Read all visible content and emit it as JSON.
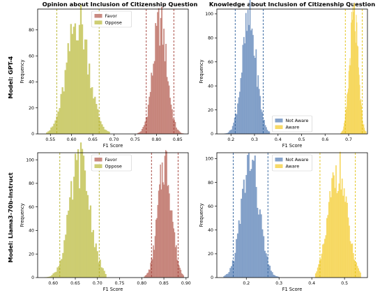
{
  "colors": {
    "favor": "#c0766b",
    "oppose": "#c6c55c",
    "not_aware": "#7193c1",
    "aware": "#f6d34d",
    "favor_line": "#a03a32",
    "oppose_line": "#b3ae22",
    "not_aware_line": "#2c5f9b",
    "aware_line": "#e2c20d"
  },
  "column_titles": [
    "Opinion about Inclusion of Citizenship Question",
    "Knowledge about Inclusion of Citizenship Question"
  ],
  "row_labels": [
    "Model: GPT-4",
    "Model: Llama3-70b-Instruct"
  ],
  "chart_data": [
    {
      "type": "bar",
      "panel": "gpt4-opinion",
      "xlabel": "F1 Score",
      "ylabel": "Frequency",
      "xlim": [
        0.52,
        0.875
      ],
      "ylim": [
        0,
        96
      ],
      "xticks": [
        "0.55",
        "0.60",
        "0.65",
        "0.70",
        "0.75",
        "0.80",
        "0.85"
      ],
      "yticks": [
        "0",
        "20",
        "40",
        "60",
        "80"
      ],
      "legend": {
        "position": "top-center",
        "entries": [
          "Favor",
          "Oppose"
        ]
      },
      "series": [
        {
          "name": "Favor",
          "key": "favor",
          "mean": 0.808,
          "sd": 0.0165,
          "peak": 85,
          "min": 0.755,
          "max": 0.865,
          "ci": [
            0.776,
            0.841
          ]
        },
        {
          "name": "Oppose",
          "key": "oppose",
          "mean": 0.615,
          "sd": 0.0256,
          "peak": 88,
          "min": 0.54,
          "max": 0.69,
          "ci": [
            0.565,
            0.665
          ]
        }
      ]
    },
    {
      "type": "bar",
      "panel": "gpt4-knowledge",
      "xlabel": "F1 Score",
      "ylabel": "Frequency",
      "xlim": [
        0.14,
        0.78
      ],
      "ylim": [
        0,
        104
      ],
      "xticks": [
        "0.2",
        "0.3",
        "0.4",
        "0.5",
        "0.6",
        "0.7"
      ],
      "yticks": [
        "0",
        "20",
        "40",
        "60",
        "80",
        "100"
      ],
      "legend": {
        "position": "bottom-center",
        "entries": [
          "Not Aware",
          "Aware"
        ]
      },
      "series": [
        {
          "name": "Not Aware",
          "key": "not_aware",
          "mean": 0.277,
          "sd": 0.0305,
          "peak": 93,
          "min": 0.17,
          "max": 0.365,
          "ci": [
            0.218,
            0.337
          ]
        },
        {
          "name": "Aware",
          "key": "aware",
          "mean": 0.722,
          "sd": 0.0183,
          "peak": 97,
          "min": 0.665,
          "max": 0.775,
          "ci": [
            0.686,
            0.758
          ]
        }
      ]
    },
    {
      "type": "bar",
      "panel": "llama-opinion",
      "xlabel": "F1 Score",
      "ylabel": "Frequency",
      "xlim": [
        0.565,
        0.905
      ],
      "ylim": [
        0,
        106
      ],
      "xticks": [
        "0.60",
        "0.65",
        "0.70",
        "0.75",
        "0.80",
        "0.85",
        "0.90"
      ],
      "yticks": [
        "0",
        "20",
        "40",
        "60",
        "80",
        "100"
      ],
      "legend": {
        "position": "top-center",
        "entries": [
          "Favor",
          "Oppose"
        ]
      },
      "series": [
        {
          "name": "Favor",
          "key": "favor",
          "mean": 0.852,
          "sd": 0.0153,
          "peak": 98,
          "min": 0.805,
          "max": 0.895,
          "ci": [
            0.822,
            0.882
          ]
        },
        {
          "name": "Oppose",
          "key": "oppose",
          "mean": 0.66,
          "sd": 0.0227,
          "peak": 97,
          "min": 0.58,
          "max": 0.72,
          "ci": [
            0.615,
            0.704
          ]
        }
      ]
    },
    {
      "type": "bar",
      "panel": "llama-knowledge",
      "xlabel": "F1 Score",
      "ylabel": "Frequency",
      "xlim": [
        0.11,
        0.57
      ],
      "ylim": [
        0,
        105
      ],
      "xticks": [
        "0.2",
        "0.3",
        "0.4",
        "0.5"
      ],
      "yticks": [
        "0",
        "20",
        "40",
        "60",
        "80",
        "100"
      ],
      "legend": {
        "position": "top-center",
        "entries": [
          "Not Aware",
          "Aware"
        ]
      },
      "series": [
        {
          "name": "Not Aware",
          "key": "not_aware",
          "mean": 0.212,
          "sd": 0.0268,
          "peak": 98,
          "min": 0.13,
          "max": 0.3,
          "ci": [
            0.16,
            0.266
          ]
        },
        {
          "name": "Aware",
          "key": "aware",
          "mean": 0.479,
          "sd": 0.0275,
          "peak": 91,
          "min": 0.41,
          "max": 0.55,
          "ci": [
            0.425,
            0.533
          ]
        }
      ]
    }
  ]
}
